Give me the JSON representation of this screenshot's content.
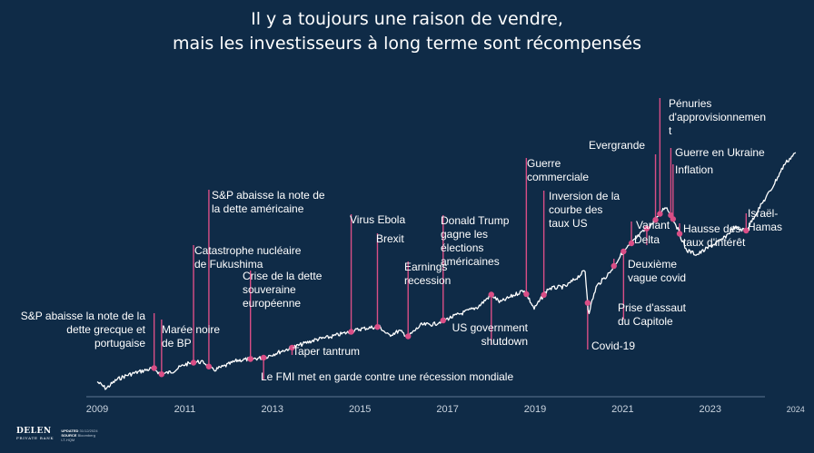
{
  "title": {
    "line1": "Il y a toujours une raison de vendre,",
    "line2": "mais les investisseurs à long terme sont récompensés"
  },
  "colors": {
    "background": "#0f2b47",
    "line": "#ffffff",
    "marker": "#d94e86",
    "text": "#ffffff"
  },
  "footer": {
    "logo": "DELEN",
    "logo_sub": "PRIVATE BANK",
    "updated_label": "UPDATED",
    "updated_value": "31/12/2024",
    "source_label": "SOURCE",
    "source_value": "Bloomberg",
    "code": "LT-HQM"
  },
  "chart_data": {
    "type": "line",
    "title": "",
    "xlabel": "",
    "ylabel": "",
    "xlim": [
      2009.0,
      2024.95
    ],
    "x_ticks": [
      "2009",
      "2011",
      "2013",
      "2015",
      "2017",
      "2019",
      "2021",
      "2023",
      "2024"
    ],
    "y_axis_visible": false,
    "grid": false,
    "series": [
      {
        "x": [
          2009.0,
          2009.2,
          2009.45,
          2009.7,
          2010.0,
          2010.3,
          2010.45,
          2010.7,
          2011.0,
          2011.3,
          2011.45,
          2011.65,
          2011.9,
          2012.2,
          2012.5,
          2012.8,
          2013.2,
          2013.6,
          2014.0,
          2014.3,
          2014.6,
          2014.8,
          2015.0,
          2015.3,
          2015.45,
          2015.65,
          2015.9,
          2016.1,
          2016.4,
          2016.7,
          2016.9,
          2017.3,
          2017.7,
          2018.0,
          2018.2,
          2018.5,
          2018.75,
          2018.98,
          2019.3,
          2019.7,
          2020.0,
          2020.14,
          2020.22,
          2020.4,
          2020.7,
          2021.0,
          2021.4,
          2021.7,
          2021.98,
          2022.2,
          2022.45,
          2022.7,
          2022.95,
          2023.3,
          2023.55,
          2023.82,
          2024.1,
          2024.4,
          2024.7,
          2024.95
        ],
        "y": [
          900,
          750,
          950,
          1050,
          1130,
          1200,
          1060,
          1120,
          1280,
          1340,
          1320,
          1150,
          1240,
          1370,
          1400,
          1430,
          1570,
          1700,
          1830,
          1880,
          1960,
          2000,
          2060,
          2100,
          2110,
          1920,
          2020,
          1900,
          2150,
          2170,
          2250,
          2400,
          2550,
          2820,
          2650,
          2800,
          2920,
          2510,
          2950,
          3000,
          3230,
          3350,
          2400,
          3000,
          3300,
          3750,
          4150,
          4400,
          4770,
          4400,
          3800,
          3700,
          3850,
          4050,
          4300,
          4230,
          4700,
          5150,
          5700,
          5950
        ]
      }
    ],
    "annotations": [
      {
        "x": 2010.3,
        "label_lines": [
          "S&P abaisse la note de la",
          "dette grecque et",
          "portugaise"
        ]
      },
      {
        "x": 2010.47,
        "label_lines": [
          "Marée noire",
          "de BP"
        ]
      },
      {
        "x": 2011.2,
        "label_lines": [
          "Catastrophe nucléaire",
          "de Fukushima"
        ]
      },
      {
        "x": 2011.55,
        "label_lines": [
          "S&P abaisse la note de",
          "la dette américaine"
        ]
      },
      {
        "x": 2012.5,
        "label_lines": [
          "Crise de la dette",
          "souveraine",
          "européenne"
        ]
      },
      {
        "x": 2012.8,
        "label_lines": [
          "Le FMI met en garde contre une récession mondiale"
        ]
      },
      {
        "x": 2013.45,
        "label_lines": [
          "Taper tantrum"
        ]
      },
      {
        "x": 2014.8,
        "label_lines": [
          "Virus Ebola"
        ]
      },
      {
        "x": 2015.4,
        "label_lines": [
          "Brexit"
        ]
      },
      {
        "x": 2016.1,
        "label_lines": [
          "Earnings",
          "recession"
        ]
      },
      {
        "x": 2016.9,
        "label_lines": [
          "Donald Trump",
          "gagne les",
          "élections",
          "américaines"
        ]
      },
      {
        "x": 2018.0,
        "label_lines": [
          "US government",
          "shutdown"
        ]
      },
      {
        "x": 2018.8,
        "label_lines": [
          "Guerre",
          "commerciale"
        ]
      },
      {
        "x": 2019.2,
        "label_lines": [
          "Inversion de la",
          "courbe des",
          "taux US"
        ]
      },
      {
        "x": 2020.2,
        "label_lines": [
          "Covid-19"
        ]
      },
      {
        "x": 2020.8,
        "label_lines": [
          "Deuxième",
          "vague covid"
        ]
      },
      {
        "x": 2021.02,
        "label_lines": [
          "Prise d'assaut",
          "du Capitole"
        ]
      },
      {
        "x": 2021.55,
        "label_lines": [
          "Delta"
        ]
      },
      {
        "x": 2021.2,
        "label_lines": [
          "Variant"
        ]
      },
      {
        "x": 2021.75,
        "label_lines": [
          "Evergrande"
        ]
      },
      {
        "x": 2021.85,
        "label_lines": [
          "Pénuries",
          "d'approvisionnemen",
          "t"
        ]
      },
      {
        "x": 2022.1,
        "label_lines": [
          "Guerre en Ukraine"
        ]
      },
      {
        "x": 2022.15,
        "label_lines": [
          "Inflation"
        ]
      },
      {
        "x": 2022.3,
        "label_lines": [
          "Hausse des",
          "taux d'intérêt"
        ]
      },
      {
        "x": 2023.82,
        "label_lines": [
          "Israël-",
          "Hamas"
        ]
      }
    ]
  }
}
